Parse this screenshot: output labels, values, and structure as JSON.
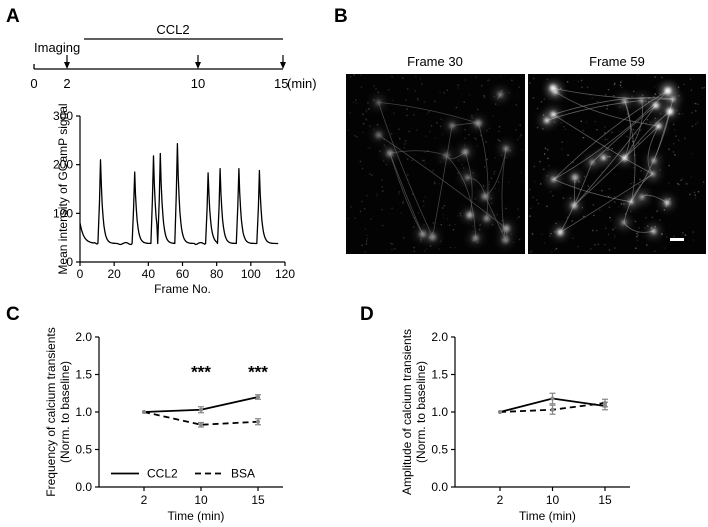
{
  "panels": {
    "a": "A",
    "b": "B",
    "c": "C",
    "d": "D"
  },
  "timeline": {
    "treatment": "CCL2",
    "event": "Imaging",
    "tick0": "0",
    "tick2": "2",
    "tick10": "10",
    "tick15": "15",
    "unit": "(min)"
  },
  "frames": {
    "left": "Frame 30",
    "right": "Frame 59"
  },
  "chart_data": [
    {
      "id": "trace",
      "type": "line",
      "title": "",
      "xlabel": "Frame No.",
      "ylabel": "Mean intensity of GCamP signal",
      "xlim": [
        0,
        120
      ],
      "ylim": [
        0,
        300
      ],
      "xticks": [
        "0",
        "20",
        "40",
        "60",
        "80",
        "100",
        "120"
      ],
      "yticks": [
        "0",
        "100",
        "200",
        "300"
      ],
      "baseline": 38,
      "start_value": 80,
      "peaks": [
        {
          "x": 12,
          "y": 210
        },
        {
          "x": 32,
          "y": 185
        },
        {
          "x": 43,
          "y": 218
        },
        {
          "x": 47,
          "y": 223
        },
        {
          "x": 57,
          "y": 243
        },
        {
          "x": 75,
          "y": 183
        },
        {
          "x": 82,
          "y": 192
        },
        {
          "x": 93,
          "y": 192
        },
        {
          "x": 105,
          "y": 188
        }
      ],
      "x_end": 116
    },
    {
      "id": "frequency",
      "type": "line",
      "xlabel": "Time (min)",
      "ylabel": "Frequency of calcium transients",
      "ylabel2": "(Norm. to baseline)",
      "categories": [
        "2",
        "10",
        "15"
      ],
      "ylim": [
        0,
        2.0
      ],
      "yticks": [
        "0.0",
        "0.5",
        "1.0",
        "1.5",
        "2.0"
      ],
      "series": [
        {
          "name": "CCL2",
          "style": "solid",
          "values": [
            1.0,
            1.03,
            1.2
          ],
          "err": [
            0,
            0.04,
            0.03
          ]
        },
        {
          "name": "BSA",
          "style": "dashed",
          "values": [
            1.0,
            0.83,
            0.87
          ],
          "err": [
            0,
            0.03,
            0.04
          ]
        }
      ],
      "annotations": [
        {
          "category": "10",
          "text": "***"
        },
        {
          "category": "15",
          "text": "***"
        }
      ],
      "legend": "bottom"
    },
    {
      "id": "amplitude",
      "type": "line",
      "xlabel": "Time (min)",
      "ylabel": "Amplitude of calcium transients",
      "ylabel2": "(Norm. to baseline)",
      "categories": [
        "2",
        "10",
        "15"
      ],
      "ylim": [
        0,
        2.0
      ],
      "yticks": [
        "0.0",
        "0.5",
        "1.0",
        "1.5",
        "2.0"
      ],
      "series": [
        {
          "name": "CCL2",
          "style": "solid",
          "values": [
            1.0,
            1.18,
            1.08
          ],
          "err": [
            0,
            0.07,
            0.05
          ]
        },
        {
          "name": "BSA",
          "style": "dashed",
          "values": [
            1.0,
            1.03,
            1.12
          ],
          "err": [
            0,
            0.06,
            0.05
          ]
        }
      ]
    }
  ]
}
